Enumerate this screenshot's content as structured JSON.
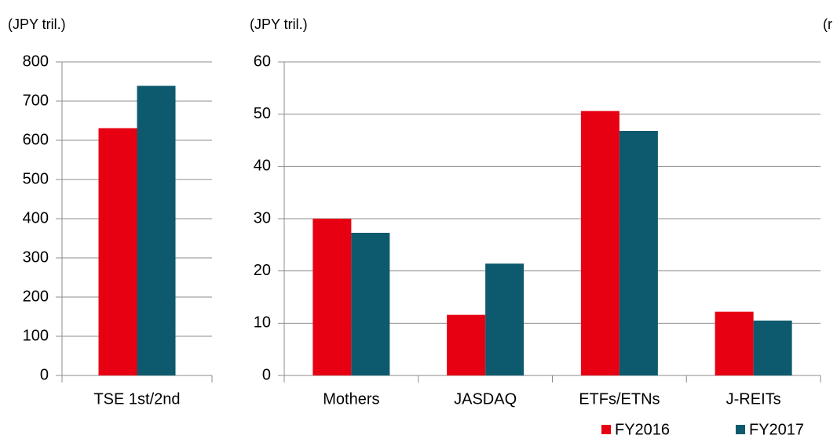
{
  "chart_data": [
    {
      "type": "bar",
      "unit_label": "(JPY tril.)",
      "categories": [
        "TSE 1st/2nd"
      ],
      "series": [
        {
          "color": "#e60012",
          "values": [
            631
          ]
        },
        {
          "color": "#0d5a6e",
          "values": [
            739
          ]
        }
      ],
      "ylim": [
        0,
        800
      ],
      "yticks": [
        0,
        100,
        200,
        300,
        400,
        500,
        600,
        700,
        800
      ],
      "grid": true
    },
    {
      "type": "bar",
      "unit_label": "(JPY tril.)",
      "categories": [
        "Mothers",
        "JASDAQ",
        "ETFs/ETNs",
        "J-REITs"
      ],
      "series": [
        {
          "name": "FY2016",
          "color": "#e60012",
          "values": [
            30,
            11.6,
            50.6,
            12.2
          ]
        },
        {
          "name": "FY2017",
          "color": "#0d5a6e",
          "values": [
            27.3,
            21.4,
            46.8,
            10.5
          ]
        }
      ],
      "ylim": [
        0,
        60
      ],
      "yticks": [
        0,
        10,
        20,
        30,
        40,
        50,
        60
      ],
      "grid": true,
      "legend": "bottom-right"
    }
  ],
  "clipped_label": "(r"
}
